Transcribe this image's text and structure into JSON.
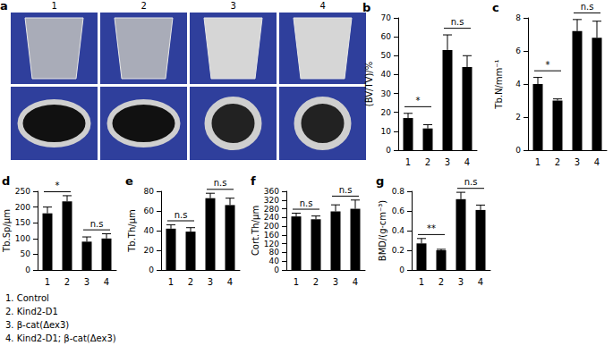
{
  "panel_a": {
    "label": "a",
    "images": [
      "1",
      "2",
      "3",
      "4"
    ]
  },
  "chart_data": [
    {
      "label": "b",
      "type": "bar",
      "categories": [
        "1",
        "2",
        "3",
        "4"
      ],
      "values": [
        17,
        11.5,
        53,
        44
      ],
      "errors": [
        2.5,
        2,
        8,
        6
      ],
      "color": "#000000",
      "ylabel": "(BV/TV)/%",
      "ylim": [
        0,
        70
      ],
      "yticks": [
        0,
        10,
        20,
        30,
        40,
        50,
        60,
        70
      ],
      "grid": false,
      "significance": [
        {
          "between": [
            "1",
            "2"
          ],
          "text": "*"
        },
        {
          "between": [
            "3",
            "4"
          ],
          "text": "n.s"
        }
      ]
    },
    {
      "label": "c",
      "type": "bar",
      "categories": [
        "1",
        "2",
        "3",
        "4"
      ],
      "values": [
        4,
        3,
        7.2,
        6.8
      ],
      "errors": [
        0.4,
        0.1,
        0.7,
        1.0
      ],
      "color": "#000000",
      "ylabel": "Tb.N/mm⁻¹",
      "ylim": [
        0,
        8
      ],
      "yticks": [
        0,
        2,
        4,
        6,
        8
      ],
      "grid": false,
      "significance": [
        {
          "between": [
            "1",
            "2"
          ],
          "text": "*"
        },
        {
          "between": [
            "3",
            "4"
          ],
          "text": "n.s"
        }
      ]
    },
    {
      "label": "d",
      "type": "bar",
      "categories": [
        "1",
        "2",
        "3",
        "4"
      ],
      "values": [
        180,
        218,
        90,
        100
      ],
      "errors": [
        20,
        18,
        15,
        15
      ],
      "color": "#000000",
      "ylabel": "Tb.Sp/μm",
      "ylim": [
        0,
        250
      ],
      "yticks": [
        0,
        50,
        100,
        150,
        200,
        250
      ],
      "grid": false,
      "significance": [
        {
          "between": [
            "1",
            "2"
          ],
          "text": "*"
        },
        {
          "between": [
            "3",
            "4"
          ],
          "text": "n.s"
        }
      ]
    },
    {
      "label": "e",
      "type": "bar",
      "categories": [
        "1",
        "2",
        "3",
        "4"
      ],
      "values": [
        42,
        39,
        73,
        66
      ],
      "errors": [
        4,
        4,
        5,
        7
      ],
      "color": "#000000",
      "ylabel": "Tb.Th/μm",
      "ylim": [
        0,
        80
      ],
      "yticks": [
        0,
        20,
        40,
        60,
        80
      ],
      "grid": false,
      "significance": [
        {
          "between": [
            "1",
            "2"
          ],
          "text": "n.s"
        },
        {
          "between": [
            "3",
            "4"
          ],
          "text": "n.s"
        }
      ]
    },
    {
      "label": "f",
      "type": "bar",
      "categories": [
        "1",
        "2",
        "3",
        "4"
      ],
      "values": [
        245,
        232,
        268,
        280
      ],
      "errors": [
        15,
        15,
        30,
        40
      ],
      "color": "#000000",
      "ylabel": "Cort.Th/μm",
      "ylim": [
        0,
        360
      ],
      "yticks": [
        0,
        40,
        80,
        120,
        160,
        200,
        240,
        280,
        320,
        360
      ],
      "grid": false,
      "significance": [
        {
          "between": [
            "1",
            "2"
          ],
          "text": "n.s"
        },
        {
          "between": [
            "3",
            "4"
          ],
          "text": "n.s"
        }
      ]
    },
    {
      "label": "g",
      "type": "bar",
      "categories": [
        "1",
        "2",
        "3",
        "4"
      ],
      "values": [
        0.27,
        0.2,
        0.72,
        0.61
      ],
      "errors": [
        0.05,
        0.01,
        0.07,
        0.05
      ],
      "color": "#000000",
      "ylabel": "BMD/(g·cm⁻³)",
      "ylim": [
        0,
        0.8
      ],
      "yticks": [
        0,
        0.2,
        0.4,
        0.6,
        0.8
      ],
      "grid": false,
      "significance": [
        {
          "between": [
            "1",
            "2"
          ],
          "text": "**"
        },
        {
          "between": [
            "3",
            "4"
          ],
          "text": "n.s"
        }
      ]
    }
  ],
  "key": [
    "1. Control",
    "2. Kind2-D1",
    "3. β-cat(Δex3)",
    "4. Kind2-D1; β-cat(Δex3)"
  ]
}
